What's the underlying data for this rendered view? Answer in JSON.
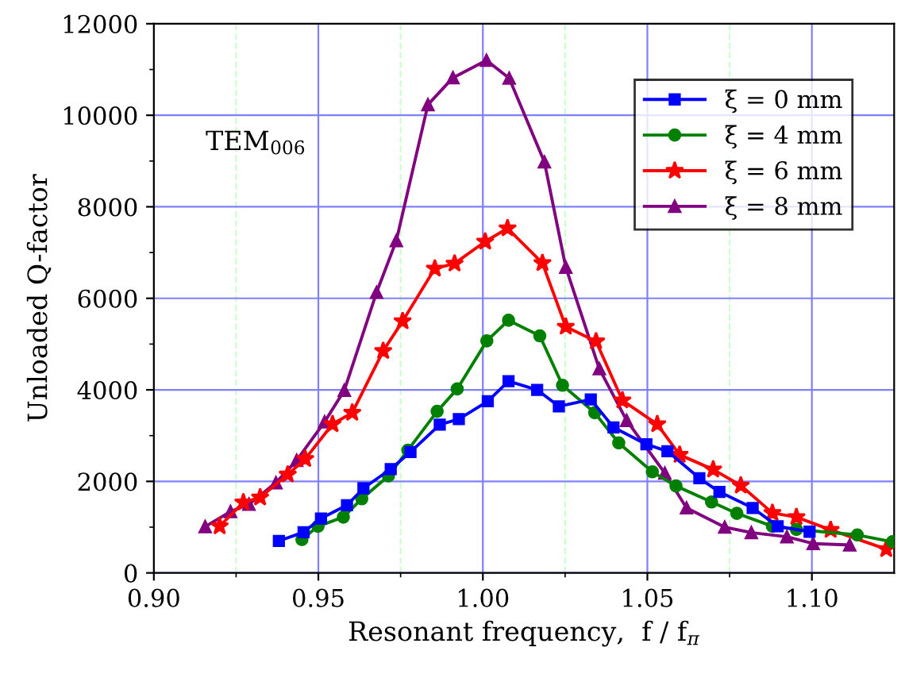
{
  "chart_data": {
    "type": "line",
    "xlabel": "Resonant frequency,  f / f$_{π}$",
    "ylabel": "Unloaded Q-factor",
    "annotations": [
      "TEM$_{006}$"
    ],
    "xlim": [
      0.9,
      1.125
    ],
    "xticks": [
      {
        "value": 0.9,
        "label": "0.90"
      },
      {
        "value": 0.925,
        "label": null
      },
      {
        "value": 0.95,
        "label": "0.95"
      },
      {
        "value": 0.975,
        "label": null
      },
      {
        "value": 1.0,
        "label": "1.00"
      },
      {
        "value": 1.025,
        "label": null
      },
      {
        "value": 1.05,
        "label": "1.05"
      },
      {
        "value": 1.075,
        "label": null
      },
      {
        "value": 1.1,
        "label": "1.10"
      }
    ],
    "ylim": [
      0,
      12000
    ],
    "yticks": [
      0,
      2000,
      4000,
      6000,
      8000,
      10000,
      12000
    ],
    "grid": true,
    "legend": "top right",
    "series": [
      {
        "name": "ξ = 0 mm",
        "color": "#0000ff",
        "marker": "square",
        "x": [
          0.938,
          0.9455,
          0.9508,
          0.9587,
          0.9637,
          0.972,
          0.978,
          0.9869,
          0.9927,
          1.0015,
          1.0078,
          1.0165,
          1.0231,
          1.0328,
          1.0397,
          1.0497,
          1.0561,
          1.0658,
          1.0719,
          1.082,
          1.0896,
          1.0993
        ],
        "values": [
          700,
          890,
          1190,
          1480,
          1850,
          2270,
          2640,
          3240,
          3360,
          3750,
          4190,
          4000,
          3640,
          3790,
          3180,
          2810,
          2660,
          2070,
          1770,
          1420,
          1020,
          900
        ]
      },
      {
        "name": "ξ = 4 mm",
        "color": "#008000",
        "marker": "circle",
        "x": [
          0.945,
          0.9499,
          0.9576,
          0.9632,
          0.9713,
          0.9772,
          0.9861,
          0.9922,
          1.0012,
          1.0078,
          1.0173,
          1.0242,
          1.034,
          1.0413,
          1.0515,
          1.0587,
          1.0695,
          1.0772,
          1.088,
          1.0953,
          1.1138,
          1.1245
        ],
        "values": [
          730,
          1020,
          1220,
          1620,
          2120,
          2680,
          3530,
          4020,
          5070,
          5520,
          5180,
          4100,
          3500,
          2840,
          2210,
          1900,
          1550,
          1300,
          1020,
          950,
          830,
          680
        ]
      },
      {
        "name": "ξ = 6 mm",
        "color": "#ff0000",
        "marker": "star",
        "x": [
          0.92,
          0.9272,
          0.9323,
          0.9407,
          0.946,
          0.9543,
          0.9603,
          0.9697,
          0.9756,
          0.9854,
          0.9914,
          1.0007,
          1.0075,
          1.0181,
          1.0252,
          1.0344,
          1.0424,
          1.053,
          1.0598,
          1.07,
          1.0784,
          1.088,
          1.0953,
          1.1057,
          1.1226
        ],
        "values": [
          1020,
          1540,
          1650,
          2150,
          2490,
          3250,
          3500,
          4850,
          5500,
          6650,
          6760,
          7240,
          7530,
          6770,
          5380,
          5060,
          3770,
          3250,
          2580,
          2260,
          1910,
          1310,
          1220,
          940,
          520
        ]
      },
      {
        "name": "ξ = 8 mm",
        "color": "#800080",
        "marker": "triangle",
        "x": [
          0.9156,
          0.9233,
          0.9289,
          0.9371,
          0.9434,
          0.9519,
          0.9579,
          0.9677,
          0.9737,
          0.9833,
          0.9909,
          1.0011,
          1.008,
          1.0187,
          1.0252,
          1.0354,
          1.0437,
          1.0553,
          1.0619,
          1.0735,
          1.0816,
          1.0924,
          1.1004,
          1.1115
        ],
        "values": [
          1010,
          1340,
          1500,
          1970,
          2460,
          3300,
          3990,
          6130,
          7260,
          10230,
          10820,
          11200,
          10810,
          8980,
          6680,
          4460,
          3330,
          2180,
          1420,
          1000,
          880,
          790,
          640,
          610
        ]
      }
    ]
  }
}
